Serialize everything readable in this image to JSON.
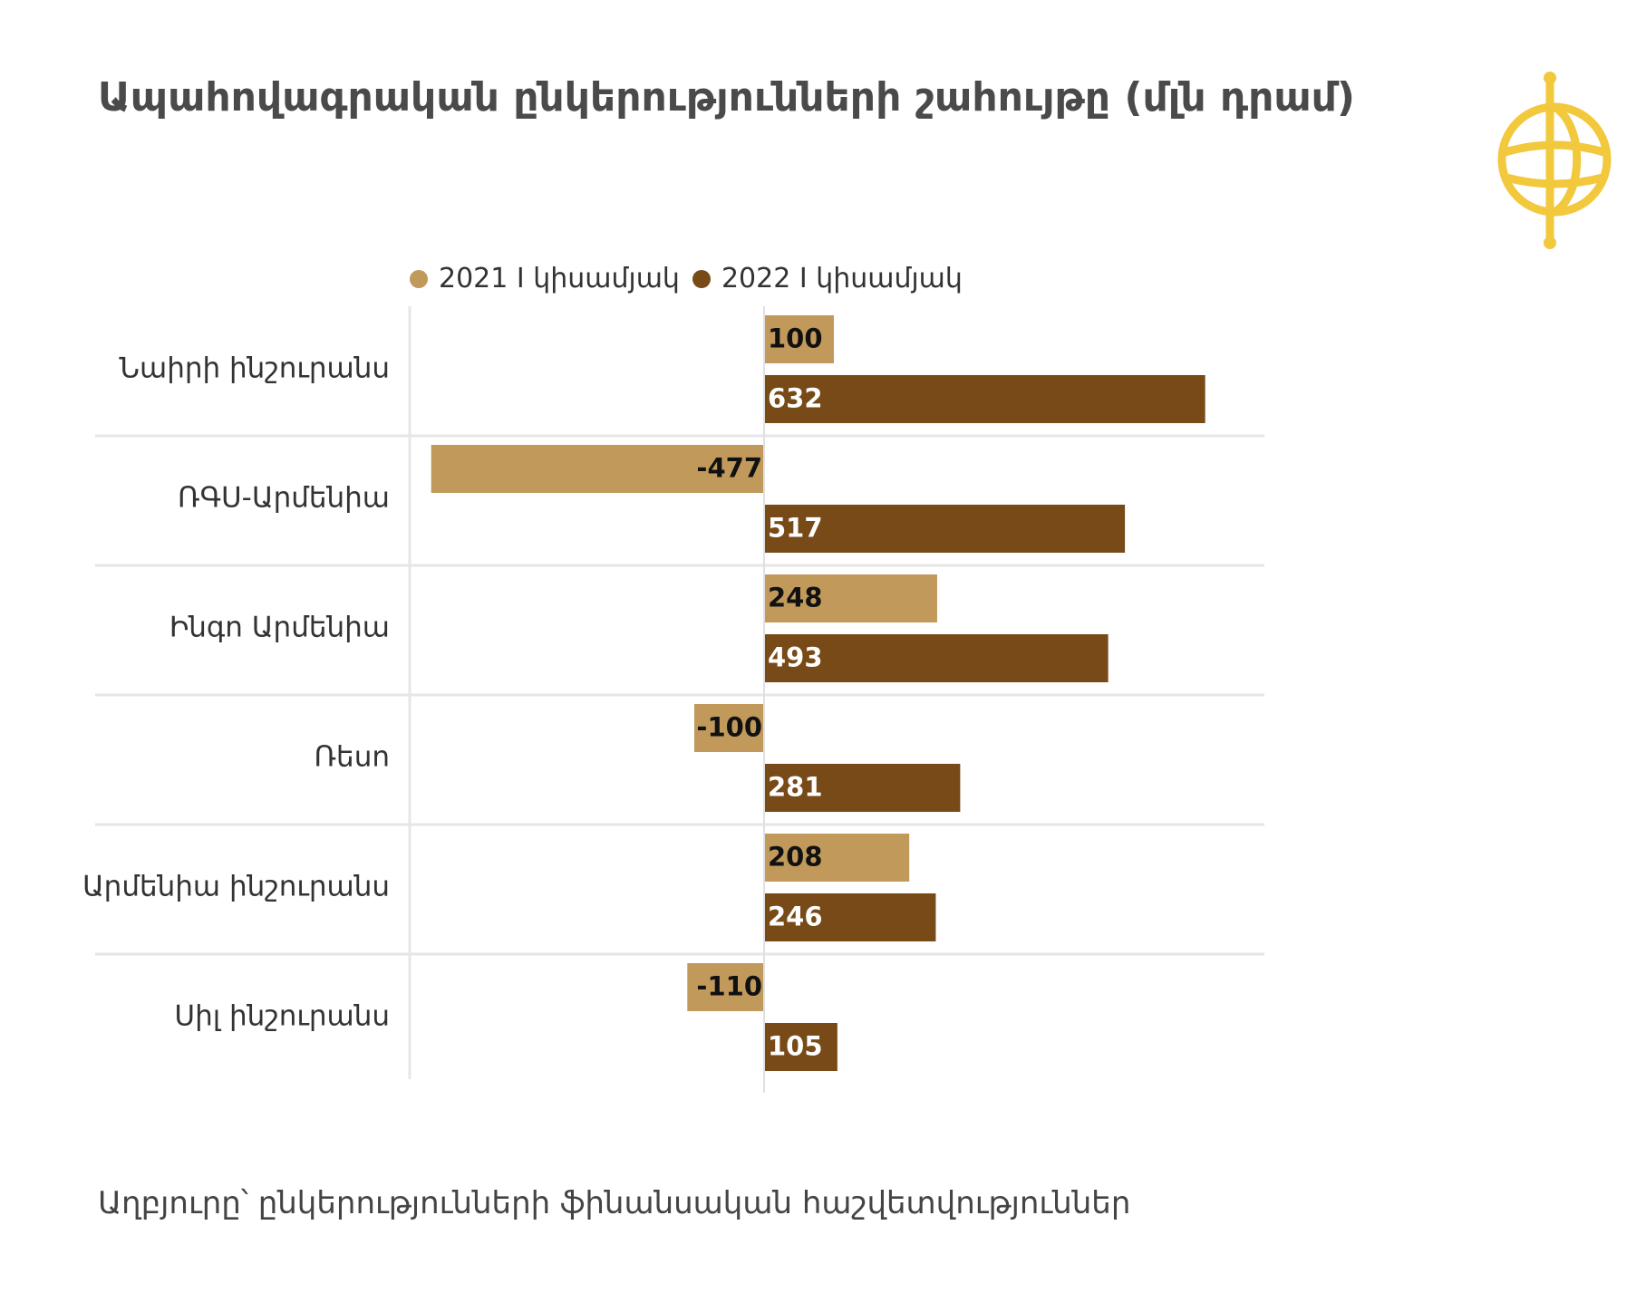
{
  "title": "Ապահովագրական ընկերությունների շահույթը (մլն դրամ)",
  "source": "Աղբյուրը՝ ընկերությունների ֆինանսական հաշվետվություններ",
  "logo_icon": "globe-microphone-logo-icon",
  "colors": {
    "series_2021": "#c19a5b",
    "series_2022": "#774a17",
    "logo": "#f2c83c"
  },
  "chart_data": {
    "type": "bar",
    "orientation": "horizontal",
    "title": "Ապահովագրական ընկերությունների շահույթը (մլն դրամ)",
    "categories": [
      "Նաիրի ինշուրանս",
      "ՌԳՍ-Արմենիա",
      "Ինգո Արմենիա",
      "Ռեսո",
      "Արմենիա ինշուրանս",
      "Սիլ ինշուրանս"
    ],
    "series": [
      {
        "name": "2021 I կիսամյակ",
        "values": [
          100,
          -477,
          248,
          -100,
          208,
          -110
        ]
      },
      {
        "name": "2022 I կիսամյակ",
        "values": [
          632,
          517,
          493,
          281,
          246,
          105
        ]
      }
    ],
    "xlim": [
      -500,
      700
    ],
    "legend": "top",
    "grid": false
  }
}
